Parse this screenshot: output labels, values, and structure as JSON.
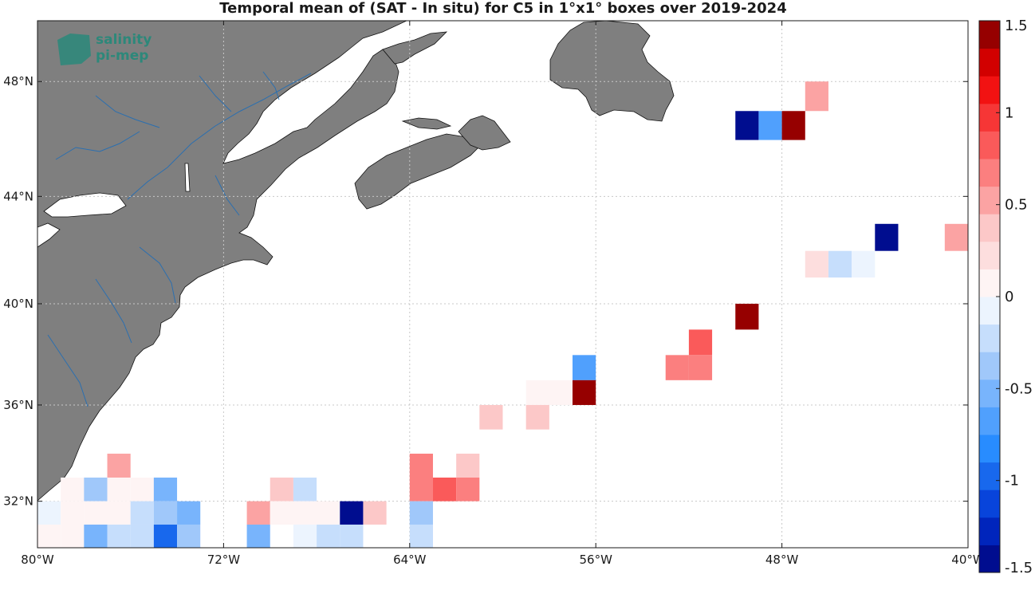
{
  "title": "Temporal mean of (SAT - In situ) for C5 in 1°x1° boxes over 2019-2024",
  "logo": {
    "line1": "salinity",
    "line2": "pi-mep"
  },
  "colors": {
    "land": "#7f7f7f",
    "water_lines": "#2b6fb0",
    "grid": "#c8c8c8",
    "frame": "#1a1a1a"
  },
  "chart_data": {
    "type": "heatmap",
    "title": "Temporal mean of (SAT - In situ) for C5 in 1°x1° boxes over 2019-2024",
    "xlim": [
      -80,
      -40
    ],
    "ylim": [
      30,
      50
    ],
    "x_ticks": [
      {
        "value": -80,
        "label": "80°W"
      },
      {
        "value": -72,
        "label": "72°W"
      },
      {
        "value": -64,
        "label": "64°W"
      },
      {
        "value": -56,
        "label": "56°W"
      },
      {
        "value": -48,
        "label": "48°W"
      },
      {
        "value": -40,
        "label": "40°W"
      }
    ],
    "y_ticks": [
      {
        "value": 32,
        "label": "32°N"
      },
      {
        "value": 36,
        "label": "36°N"
      },
      {
        "value": 40,
        "label": "40°N"
      },
      {
        "value": 44,
        "label": "44°N"
      },
      {
        "value": 48,
        "label": "48°N"
      }
    ],
    "grid": true,
    "colorbar": {
      "range": [
        -1.5,
        1.5
      ],
      "ticks": [
        {
          "value": 1.5,
          "label": "1.5"
        },
        {
          "value": 1,
          "label": "1"
        },
        {
          "value": 0.5,
          "label": "0.5"
        },
        {
          "value": 0,
          "label": "0"
        },
        {
          "value": -0.5,
          "label": "-0.5"
        },
        {
          "value": -1,
          "label": "-1"
        },
        {
          "value": -1.5,
          "label": "-1.5"
        }
      ],
      "levels": 20
    },
    "cells": [
      {
        "lon": -46.5,
        "lat": 47.5,
        "value": 0.45
      },
      {
        "lon": -49.5,
        "lat": 46.5,
        "value": -1.5
      },
      {
        "lon": -48.5,
        "lat": 46.5,
        "value": -0.7
      },
      {
        "lon": -47.5,
        "lat": 46.5,
        "value": 1.4
      },
      {
        "lon": -43.5,
        "lat": 42.5,
        "value": -1.5
      },
      {
        "lon": -40.5,
        "lat": 42.5,
        "value": 0.55
      },
      {
        "lon": -46.5,
        "lat": 41.5,
        "value": 0.25
      },
      {
        "lon": -45.5,
        "lat": 41.5,
        "value": -0.25
      },
      {
        "lon": -44.5,
        "lat": 41.5,
        "value": -0.12
      },
      {
        "lon": -49.5,
        "lat": 39.5,
        "value": 1.45
      },
      {
        "lon": -51.5,
        "lat": 38.5,
        "value": 0.9
      },
      {
        "lon": -52.5,
        "lat": 37.5,
        "value": 0.6
      },
      {
        "lon": -51.5,
        "lat": 37.5,
        "value": 0.7
      },
      {
        "lon": -56.5,
        "lat": 37.5,
        "value": -0.65
      },
      {
        "lon": -58.5,
        "lat": 36.5,
        "value": 0.1
      },
      {
        "lon": -57.5,
        "lat": 36.5,
        "value": 0.1
      },
      {
        "lon": -56.5,
        "lat": 36.5,
        "value": 1.4
      },
      {
        "lon": -60.5,
        "lat": 35.5,
        "value": 0.4
      },
      {
        "lon": -58.5,
        "lat": 35.5,
        "value": 0.3
      },
      {
        "lon": -63.5,
        "lat": 33.5,
        "value": 0.7
      },
      {
        "lon": -61.5,
        "lat": 33.5,
        "value": 0.4
      },
      {
        "lon": -63.5,
        "lat": 32.5,
        "value": 0.7
      },
      {
        "lon": -62.5,
        "lat": 32.5,
        "value": 0.9
      },
      {
        "lon": -61.5,
        "lat": 32.5,
        "value": 0.7
      },
      {
        "lon": -63.5,
        "lat": 31.5,
        "value": -0.35
      },
      {
        "lon": -63.5,
        "lat": 30.5,
        "value": -0.2
      },
      {
        "lon": -76.5,
        "lat": 33.5,
        "value": 0.45
      },
      {
        "lon": -78.5,
        "lat": 32.5,
        "value": 0.15
      },
      {
        "lon": -77.5,
        "lat": 32.5,
        "value": -0.35
      },
      {
        "lon": -76.5,
        "lat": 32.5,
        "value": 0.0
      },
      {
        "lon": -75.5,
        "lat": 32.5,
        "value": 0.0
      },
      {
        "lon": -74.5,
        "lat": 32.5,
        "value": -0.6
      },
      {
        "lon": -69.5,
        "lat": 32.5,
        "value": 0.3
      },
      {
        "lon": -68.5,
        "lat": 32.5,
        "value": -0.25
      },
      {
        "lon": -79.5,
        "lat": 31.5,
        "value": -0.12
      },
      {
        "lon": -78.5,
        "lat": 31.5,
        "value": 0.0
      },
      {
        "lon": -77.5,
        "lat": 31.5,
        "value": 0.0
      },
      {
        "lon": -76.5,
        "lat": 31.5,
        "value": 0.0
      },
      {
        "lon": -75.5,
        "lat": 31.5,
        "value": -0.2
      },
      {
        "lon": -74.5,
        "lat": 31.5,
        "value": -0.35
      },
      {
        "lon": -73.5,
        "lat": 31.5,
        "value": -0.55
      },
      {
        "lon": -70.5,
        "lat": 31.5,
        "value": 0.5
      },
      {
        "lon": -69.5,
        "lat": 31.5,
        "value": 0.0
      },
      {
        "lon": -68.5,
        "lat": 31.5,
        "value": 0.0
      },
      {
        "lon": -67.5,
        "lat": 31.5,
        "value": 0.12
      },
      {
        "lon": -66.5,
        "lat": 31.5,
        "value": -1.5
      },
      {
        "lon": -65.5,
        "lat": 31.5,
        "value": 0.3
      },
      {
        "lon": -79.5,
        "lat": 30.5,
        "value": 0.0
      },
      {
        "lon": -78.5,
        "lat": 30.5,
        "value": 0.12
      },
      {
        "lon": -77.5,
        "lat": 30.5,
        "value": -0.6
      },
      {
        "lon": -76.5,
        "lat": 30.5,
        "value": -0.25
      },
      {
        "lon": -75.5,
        "lat": 30.5,
        "value": -0.25
      },
      {
        "lon": -74.5,
        "lat": 30.5,
        "value": -0.9
      },
      {
        "lon": -73.5,
        "lat": 30.5,
        "value": -0.35
      },
      {
        "lon": -70.5,
        "lat": 30.5,
        "value": -0.6
      },
      {
        "lon": -68.5,
        "lat": 30.5,
        "value": -0.12
      },
      {
        "lon": -67.5,
        "lat": 30.5,
        "value": -0.25
      },
      {
        "lon": -66.5,
        "lat": 30.5,
        "value": -0.25
      }
    ]
  }
}
